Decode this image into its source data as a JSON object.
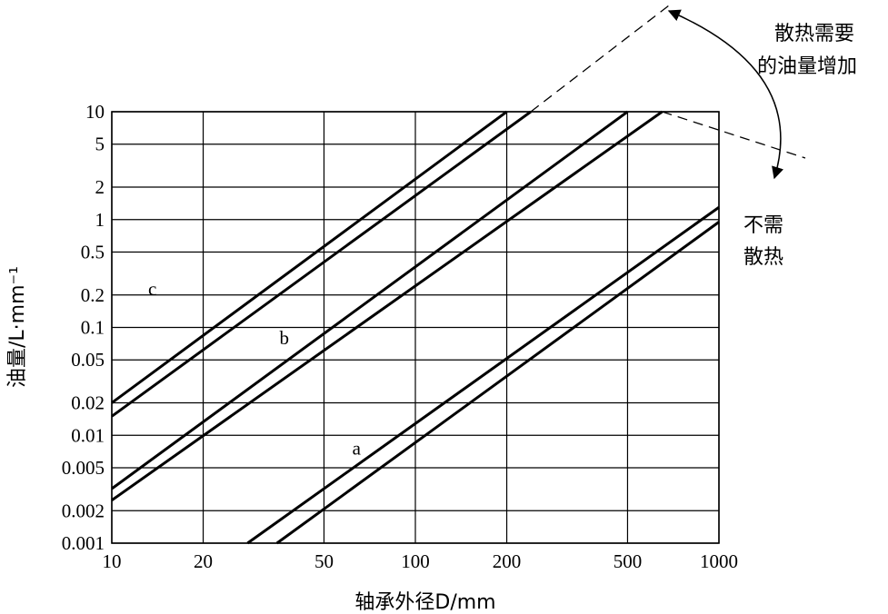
{
  "chart_data": {
    "type": "line",
    "x_scale": "log",
    "y_scale": "log",
    "xlim": [
      10,
      1000
    ],
    "ylim": [
      0.001,
      10
    ],
    "grid": true,
    "x_ticks": [
      10,
      20,
      50,
      100,
      200,
      500,
      1000
    ],
    "y_ticks": [
      0.001,
      0.002,
      0.005,
      0.01,
      0.02,
      0.05,
      0.1,
      0.2,
      0.5,
      1,
      2,
      5,
      10
    ],
    "x_tick_labels": [
      "10",
      "20",
      "50",
      "100",
      "200",
      "500",
      "1000"
    ],
    "y_tick_labels": [
      "0.001",
      "0.002",
      "0.005",
      "0.01",
      "0.02",
      "0.05",
      "0.1",
      "0.2",
      "0.5",
      "1",
      "2",
      "5",
      "10"
    ],
    "xlabel": "轴承外径D/mm",
    "ylabel": "油量/L·mm⁻¹",
    "series": [
      {
        "name": "c",
        "label_at": [
          13.6,
          0.2
        ],
        "lines": [
          {
            "x": [
              10,
              200
            ],
            "y": [
              0.02,
              10
            ]
          },
          {
            "x": [
              10,
              240
            ],
            "y": [
              0.015,
              10
            ]
          }
        ]
      },
      {
        "name": "b",
        "label_at": [
          37,
          0.07
        ],
        "lines": [
          {
            "x": [
              10,
              500
            ],
            "y": [
              0.0032,
              10
            ]
          },
          {
            "x": [
              10,
              650
            ],
            "y": [
              0.0025,
              10
            ]
          }
        ]
      },
      {
        "name": "a",
        "label_at": [
          64,
          0.0066
        ],
        "lines": [
          {
            "x": [
              28,
              1000
            ],
            "y": [
              0.001,
              1.3
            ]
          },
          {
            "x": [
              35,
              1000
            ],
            "y": [
              0.001,
              0.95
            ]
          }
        ]
      }
    ],
    "annotations": {
      "upper": [
        "散热需要",
        "的油量增加"
      ],
      "lower": [
        "不需",
        "散热"
      ]
    }
  }
}
